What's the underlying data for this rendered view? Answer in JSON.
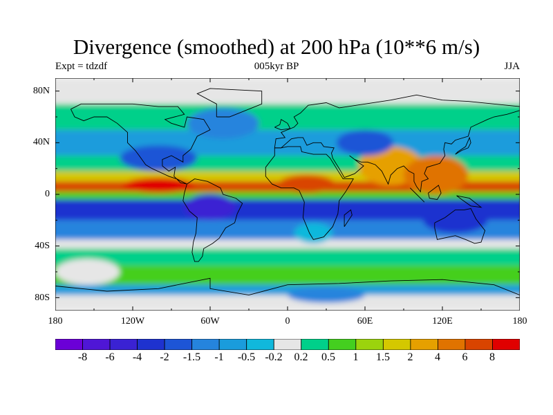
{
  "header": {
    "title": "Divergence (smoothed) at 200 hPa (10**6 m/s)",
    "left_label": "Expt = tdzdf",
    "center_label": "005kyr BP",
    "right_label": "JJA"
  },
  "axes": {
    "lat_labels": [
      "80N",
      "40N",
      "0",
      "40S",
      "80S"
    ],
    "lon_labels": [
      "180",
      "120W",
      "60W",
      "0",
      "60E",
      "120E",
      "180"
    ]
  },
  "colorbar": {
    "colors": [
      "#6b00d7",
      "#4f16d6",
      "#3a22d3",
      "#1e32cf",
      "#1d55d6",
      "#2584dd",
      "#1a9cdc",
      "#10b8dc",
      "#e6e6e6",
      "#00d08a",
      "#44cf1f",
      "#9bd30d",
      "#d4c800",
      "#e6a000",
      "#e07300",
      "#d94400",
      "#e00000"
    ],
    "labels": [
      "-8",
      "-6",
      "-4",
      "-2",
      "-1.5",
      "-1",
      "-0.5",
      "-0.2",
      "0.2",
      "0.5",
      "1",
      "1.5",
      "2",
      "4",
      "6",
      "8"
    ]
  },
  "map_data": {
    "bands": [
      {
        "lat_top": 90,
        "lat_bottom": 70,
        "level": 8
      },
      {
        "lat_top": 70,
        "lat_bottom": 50,
        "level": 9
      },
      {
        "lat_top": 50,
        "lat_bottom": 30,
        "level": 6
      },
      {
        "lat_top": 30,
        "lat_bottom": 18,
        "level": 9
      },
      {
        "lat_top": 18,
        "lat_bottom": 10,
        "level": 12
      },
      {
        "lat_top": 10,
        "lat_bottom": 2,
        "level": 15
      },
      {
        "lat_top": 2,
        "lat_bottom": -4,
        "level": 10
      },
      {
        "lat_top": -4,
        "lat_bottom": -20,
        "level": 3
      },
      {
        "lat_top": -20,
        "lat_bottom": -35,
        "level": 5
      },
      {
        "lat_top": -35,
        "lat_bottom": -42,
        "level": 8
      },
      {
        "lat_top": -42,
        "lat_bottom": -55,
        "level": 9
      },
      {
        "lat_top": -55,
        "lat_bottom": -70,
        "level": 10
      },
      {
        "lat_top": -70,
        "lat_bottom": -78,
        "level": 6
      },
      {
        "lat_top": -78,
        "lat_bottom": -90,
        "level": 8
      }
    ],
    "blobs": [
      {
        "lon": -100,
        "lat": 7,
        "rlon": 28,
        "rlat": 6,
        "level": 16
      },
      {
        "lon": 15,
        "lat": 8,
        "rlon": 22,
        "rlat": 7,
        "level": 15
      },
      {
        "lon": 80,
        "lat": 22,
        "rlon": 25,
        "rlat": 15,
        "level": 13
      },
      {
        "lon": 115,
        "lat": 15,
        "rlon": 25,
        "rlat": 15,
        "level": 14
      },
      {
        "lon": -100,
        "lat": 28,
        "rlon": 30,
        "rlat": 10,
        "level": 4
      },
      {
        "lon": -50,
        "lat": 55,
        "rlon": 28,
        "rlat": 12,
        "level": 5
      },
      {
        "lon": 60,
        "lat": 40,
        "rlon": 22,
        "rlat": 10,
        "level": 4
      },
      {
        "lon": -60,
        "lat": -10,
        "rlon": 20,
        "rlat": 10,
        "level": 2
      },
      {
        "lon": 130,
        "lat": -20,
        "rlon": 25,
        "rlat": 10,
        "level": 3
      },
      {
        "lon": 20,
        "lat": -30,
        "rlon": 15,
        "rlat": 8,
        "level": 7
      },
      {
        "lon": -155,
        "lat": -60,
        "rlon": 25,
        "rlat": 10,
        "level": 8
      },
      {
        "lon": 30,
        "lat": -78,
        "rlon": 30,
        "rlat": 6,
        "level": 5
      }
    ],
    "coastlines": [
      [
        [
          -168,
          66
        ],
        [
          -160,
          70
        ],
        [
          -140,
          70
        ],
        [
          -120,
          70
        ],
        [
          -100,
          68
        ],
        [
          -85,
          68
        ],
        [
          -80,
          62
        ],
        [
          -95,
          58
        ],
        [
          -90,
          55
        ],
        [
          -80,
          52
        ],
        [
          -78,
          60
        ],
        [
          -65,
          58
        ],
        [
          -60,
          50
        ],
        [
          -70,
          45
        ],
        [
          -75,
          35
        ],
        [
          -81,
          30
        ],
        [
          -81,
          25
        ],
        [
          -90,
          30
        ],
        [
          -97,
          27
        ],
        [
          -97,
          22
        ],
        [
          -92,
          18
        ],
        [
          -87,
          21
        ],
        [
          -88,
          14
        ],
        [
          -83,
          9
        ],
        [
          -78,
          8
        ],
        [
          -86,
          12
        ],
        [
          -92,
          14
        ],
        [
          -105,
          20
        ],
        [
          -110,
          23
        ],
        [
          -115,
          30
        ],
        [
          -118,
          34
        ],
        [
          -124,
          40
        ],
        [
          -124,
          48
        ],
        [
          -132,
          55
        ],
        [
          -140,
          60
        ],
        [
          -150,
          60
        ],
        [
          -158,
          57
        ],
        [
          -165,
          60
        ],
        [
          -168,
          66
        ]
      ],
      [
        [
          -78,
          8
        ],
        [
          -72,
          12
        ],
        [
          -62,
          10
        ],
        [
          -52,
          5
        ],
        [
          -50,
          0
        ],
        [
          -40,
          -3
        ],
        [
          -35,
          -7
        ],
        [
          -39,
          -15
        ],
        [
          -41,
          -22
        ],
        [
          -48,
          -26
        ],
        [
          -53,
          -34
        ],
        [
          -58,
          -38
        ],
        [
          -65,
          -42
        ],
        [
          -66,
          -48
        ],
        [
          -69,
          -52
        ],
        [
          -72,
          -52
        ],
        [
          -74,
          -45
        ],
        [
          -73,
          -37
        ],
        [
          -71,
          -30
        ],
        [
          -70,
          -18
        ],
        [
          -76,
          -13
        ],
        [
          -81,
          -5
        ],
        [
          -80,
          1
        ],
        [
          -78,
          8
        ]
      ],
      [
        [
          -10,
          36
        ],
        [
          -5,
          36
        ],
        [
          0,
          37
        ],
        [
          10,
          37
        ],
        [
          11,
          33
        ],
        [
          20,
          31
        ],
        [
          30,
          31
        ],
        [
          33,
          28
        ],
        [
          38,
          20
        ],
        [
          43,
          12
        ],
        [
          51,
          12
        ],
        [
          45,
          2
        ],
        [
          40,
          -5
        ],
        [
          39,
          -15
        ],
        [
          35,
          -25
        ],
        [
          28,
          -33
        ],
        [
          20,
          -35
        ],
        [
          17,
          -30
        ],
        [
          12,
          -18
        ],
        [
          13,
          -6
        ],
        [
          9,
          3
        ],
        [
          5,
          5
        ],
        [
          -5,
          5
        ],
        [
          -12,
          8
        ],
        [
          -17,
          14
        ],
        [
          -17,
          21
        ],
        [
          -10,
          30
        ],
        [
          -10,
          36
        ]
      ],
      [
        [
          -10,
          36
        ],
        [
          -9,
          43
        ],
        [
          -2,
          44
        ],
        [
          -5,
          48
        ],
        [
          5,
          52
        ],
        [
          8,
          55
        ],
        [
          5,
          60
        ],
        [
          10,
          63
        ],
        [
          16,
          69
        ],
        [
          30,
          71
        ],
        [
          40,
          67
        ],
        [
          60,
          70
        ],
        [
          80,
          73
        ],
        [
          100,
          77
        ],
        [
          120,
          73
        ],
        [
          140,
          72
        ],
        [
          160,
          70
        ],
        [
          180,
          68
        ],
        [
          180,
          65
        ],
        [
          170,
          62
        ],
        [
          160,
          60
        ],
        [
          155,
          58
        ],
        [
          142,
          52
        ],
        [
          140,
          45
        ],
        [
          130,
          42
        ],
        [
          127,
          39
        ],
        [
          122,
          40
        ],
        [
          121,
          35
        ],
        [
          122,
          30
        ],
        [
          118,
          24
        ],
        [
          108,
          21
        ],
        [
          106,
          16
        ],
        [
          109,
          12
        ],
        [
          104,
          10
        ],
        [
          103,
          2
        ],
        [
          100,
          6
        ],
        [
          98,
          10
        ],
        [
          98,
          16
        ],
        [
          94,
          18
        ],
        [
          90,
          22
        ],
        [
          85,
          20
        ],
        [
          80,
          15
        ],
        [
          78,
          8
        ],
        [
          73,
          18
        ],
        [
          68,
          23
        ],
        [
          62,
          25
        ],
        [
          57,
          25
        ],
        [
          52,
          27
        ],
        [
          48,
          30
        ],
        [
          56,
          24
        ],
        [
          59,
          22
        ],
        [
          52,
          16
        ],
        [
          44,
          13
        ],
        [
          40,
          20
        ],
        [
          35,
          28
        ],
        [
          34,
          32
        ],
        [
          36,
          36
        ],
        [
          28,
          37
        ],
        [
          26,
          40
        ],
        [
          20,
          40
        ],
        [
          15,
          38
        ],
        [
          12,
          44
        ],
        [
          8,
          44
        ],
        [
          3,
          43
        ],
        [
          -5,
          36
        ],
        [
          -10,
          36
        ]
      ],
      [
        [
          114,
          -22
        ],
        [
          122,
          -18
        ],
        [
          130,
          -12
        ],
        [
          137,
          -12
        ],
        [
          142,
          -11
        ],
        [
          146,
          -19
        ],
        [
          153,
          -28
        ],
        [
          150,
          -37
        ],
        [
          145,
          -38
        ],
        [
          138,
          -35
        ],
        [
          130,
          -32
        ],
        [
          116,
          -35
        ],
        [
          114,
          -26
        ],
        [
          114,
          -22
        ]
      ],
      [
        [
          -55,
          60
        ],
        [
          -45,
          60
        ],
        [
          -20,
          70
        ],
        [
          -20,
          80
        ],
        [
          -60,
          82
        ],
        [
          -70,
          78
        ],
        [
          -55,
          70
        ],
        [
          -55,
          60
        ]
      ],
      [
        [
          -10,
          52
        ],
        [
          -6,
          54
        ],
        [
          -5,
          58
        ],
        [
          0,
          55
        ],
        [
          2,
          51
        ],
        [
          -5,
          50
        ],
        [
          -10,
          52
        ]
      ],
      [
        [
          130,
          31
        ],
        [
          135,
          34
        ],
        [
          140,
          36
        ],
        [
          142,
          40
        ],
        [
          141,
          44
        ],
        [
          138,
          37
        ],
        [
          132,
          33
        ],
        [
          130,
          31
        ]
      ],
      [
        [
          95,
          5
        ],
        [
          105,
          -5
        ],
        [
          106,
          -6
        ],
        [
          100,
          0
        ],
        [
          95,
          5
        ]
      ],
      [
        [
          109,
          1
        ],
        [
          117,
          7
        ],
        [
          119,
          1
        ],
        [
          116,
          -4
        ],
        [
          110,
          -3
        ],
        [
          109,
          1
        ]
      ],
      [
        [
          131,
          -1
        ],
        [
          141,
          -3
        ],
        [
          150,
          -10
        ],
        [
          142,
          -9
        ],
        [
          135,
          -4
        ],
        [
          131,
          -1
        ]
      ],
      [
        [
          44,
          -25
        ],
        [
          50,
          -16
        ],
        [
          49,
          -12
        ],
        [
          44,
          -16
        ],
        [
          44,
          -25
        ]
      ],
      [
        [
          -180,
          -71
        ],
        [
          -140,
          -75
        ],
        [
          -100,
          -73
        ],
        [
          -60,
          -65
        ],
        [
          -60,
          -73
        ],
        [
          -30,
          -78
        ],
        [
          0,
          -70
        ],
        [
          40,
          -69
        ],
        [
          80,
          -67
        ],
        [
          120,
          -66
        ],
        [
          160,
          -70
        ],
        [
          180,
          -78
        ]
      ]
    ]
  }
}
